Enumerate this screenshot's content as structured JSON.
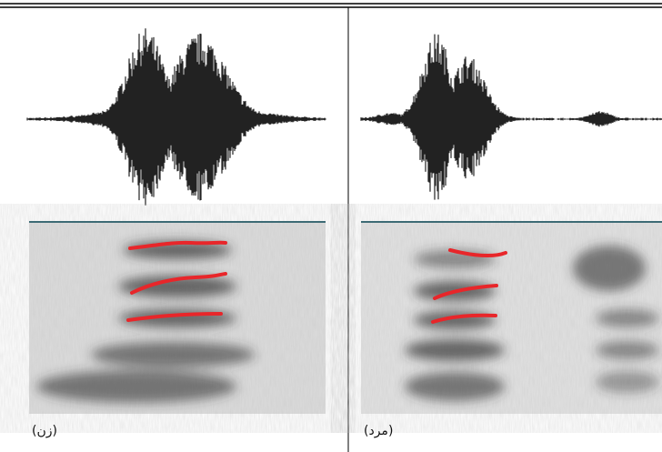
{
  "panels": [
    {
      "label": "(زن)"
    },
    {
      "label": "(مرد)"
    }
  ]
}
